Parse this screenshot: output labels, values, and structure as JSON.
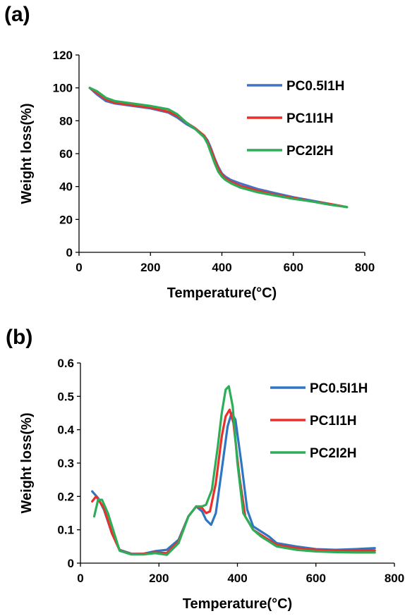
{
  "panels": [
    {
      "label": "(a)",
      "chart_data": {
        "type": "line",
        "xlabel": "Temperature(°C)",
        "ylabel": "Weight loss(%)",
        "xlim": [
          0,
          800
        ],
        "ylim": [
          0,
          120
        ],
        "xticks": [
          0,
          200,
          400,
          600,
          800
        ],
        "yticks": [
          0,
          20,
          40,
          60,
          80,
          100,
          120
        ],
        "legend_position": "top-right",
        "series": [
          {
            "name": "PC0.5I1H",
            "color": "#4472C4",
            "x": [
              30,
              50,
              75,
              100,
              150,
              200,
              250,
              275,
              300,
              325,
              350,
              360,
              370,
              380,
              390,
              400,
              410,
              425,
              450,
              500,
              550,
              600,
              650,
              700,
              750
            ],
            "y": [
              100,
              96,
              92,
              90.5,
              89,
              87.5,
              85,
              82,
              78,
              75,
              71,
              68,
              63,
              57,
              52,
              48,
              46,
              44,
              42,
              38.5,
              36,
              33.5,
              31.5,
              29.5,
              27.5
            ]
          },
          {
            "name": "PC1I1H",
            "color": "#E8312A",
            "x": [
              30,
              50,
              75,
              100,
              150,
              200,
              250,
              275,
              300,
              325,
              350,
              360,
              370,
              380,
              390,
              400,
              410,
              425,
              450,
              500,
              550,
              600,
              650,
              700,
              750
            ],
            "y": [
              100,
              97,
              93,
              91,
              89.5,
              88,
              85.5,
              83,
              79,
              75.5,
              71,
              67,
              62,
              56,
              51,
              47,
              45,
              43,
              40.5,
              37.5,
              35,
              33,
              31,
              29.5,
              27.5
            ]
          },
          {
            "name": "PC2I2H",
            "color": "#2EAD58",
            "x": [
              30,
              50,
              75,
              100,
              150,
              200,
              250,
              275,
              300,
              325,
              350,
              360,
              370,
              380,
              390,
              400,
              410,
              425,
              450,
              500,
              550,
              600,
              650,
              700,
              750
            ],
            "y": [
              100,
              98,
              94,
              92,
              90.5,
              89,
              87,
              84,
              79,
              75,
              70,
              66,
              60,
              54,
              49,
              46,
              44,
              42,
              39.5,
              36.5,
              34.5,
              32.5,
              31,
              29,
              27.5
            ]
          }
        ]
      }
    },
    {
      "label": "(b)",
      "chart_data": {
        "type": "line",
        "xlabel": "Temperature(°C)",
        "ylabel": "Weight loss(%)",
        "xlim": [
          0,
          800
        ],
        "ylim": [
          0,
          0.6
        ],
        "xticks": [
          0,
          200,
          400,
          600,
          800
        ],
        "yticks": [
          0,
          0.1,
          0.2,
          0.3,
          0.4,
          0.5,
          0.6
        ],
        "legend_position": "top-right",
        "series": [
          {
            "name": "PC0.5I1H",
            "color": "#2E75C2",
            "x": [
              30,
              45,
              60,
              80,
              100,
              130,
              160,
              190,
              220,
              250,
              275,
              295,
              310,
              320,
              333,
              345,
              360,
              375,
              385,
              395,
              410,
              425,
              440,
              460,
              480,
              500,
              550,
              600,
              650,
              700,
              750
            ],
            "y": [
              0.215,
              0.195,
              0.16,
              0.09,
              0.04,
              0.028,
              0.028,
              0.036,
              0.04,
              0.07,
              0.14,
              0.17,
              0.155,
              0.13,
              0.115,
              0.15,
              0.28,
              0.41,
              0.45,
              0.43,
              0.3,
              0.16,
              0.11,
              0.095,
              0.08,
              0.06,
              0.05,
              0.042,
              0.04,
              0.042,
              0.045
            ]
          },
          {
            "name": "PC1I1H",
            "color": "#E8312A",
            "x": [
              30,
              40,
              60,
              80,
              100,
              130,
              160,
              190,
              220,
              250,
              275,
              295,
              310,
              320,
              330,
              345,
              360,
              370,
              380,
              390,
              405,
              420,
              440,
              460,
              480,
              500,
              550,
              600,
              650,
              700,
              750
            ],
            "y": [
              0.185,
              0.2,
              0.165,
              0.09,
              0.038,
              0.027,
              0.028,
              0.032,
              0.03,
              0.065,
              0.14,
              0.17,
              0.165,
              0.15,
              0.155,
              0.24,
              0.38,
              0.44,
              0.46,
              0.42,
              0.26,
              0.14,
              0.1,
              0.085,
              0.07,
              0.055,
              0.045,
              0.04,
              0.038,
              0.038,
              0.038
            ]
          },
          {
            "name": "PC2I2H",
            "color": "#2EAD58",
            "x": [
              35,
              45,
              55,
              70,
              100,
              130,
              160,
              190,
              220,
              250,
              275,
              295,
              310,
              320,
              335,
              350,
              360,
              370,
              378,
              388,
              400,
              415,
              440,
              460,
              480,
              500,
              550,
              600,
              650,
              700,
              750
            ],
            "y": [
              0.14,
              0.19,
              0.19,
              0.15,
              0.037,
              0.026,
              0.026,
              0.03,
              0.025,
              0.06,
              0.14,
              0.17,
              0.17,
              0.175,
              0.22,
              0.35,
              0.45,
              0.52,
              0.53,
              0.47,
              0.3,
              0.15,
              0.1,
              0.08,
              0.065,
              0.05,
              0.04,
              0.035,
              0.033,
              0.032,
              0.032
            ]
          }
        ]
      }
    }
  ]
}
